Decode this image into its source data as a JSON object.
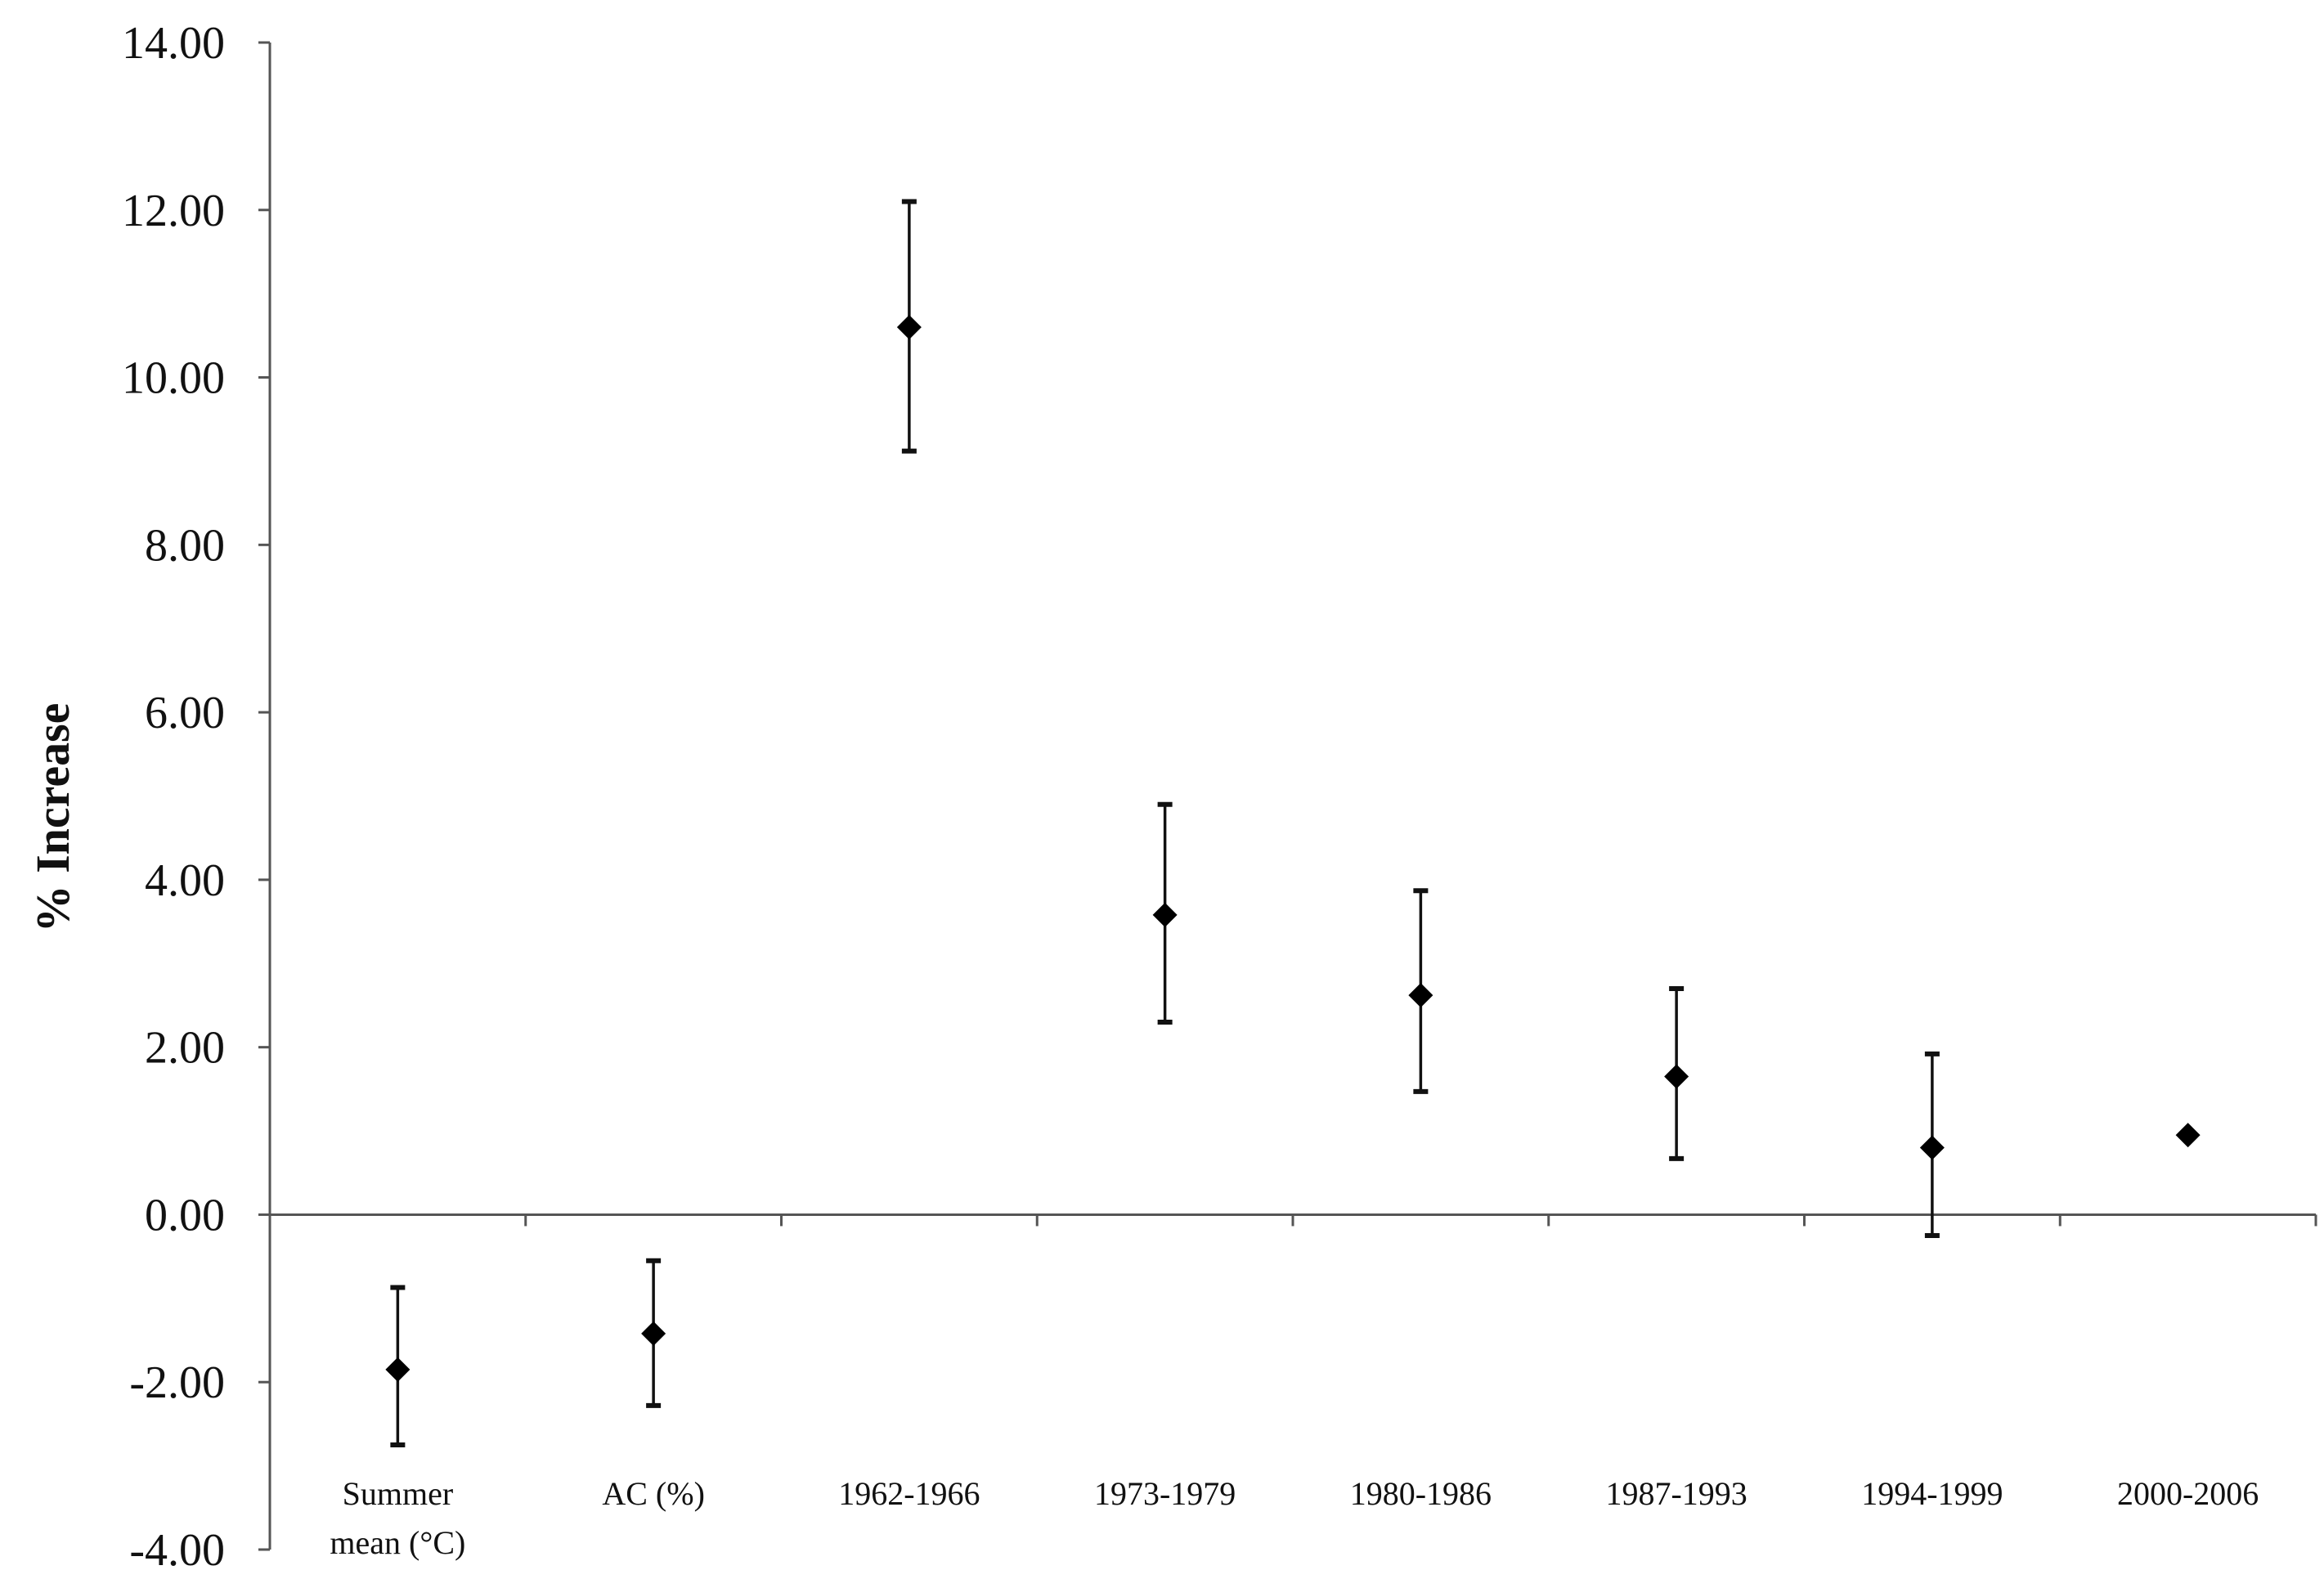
{
  "chart_data": {
    "type": "scatter",
    "title": "",
    "ylabel": "% Increase",
    "xlabel": "",
    "ylim": [
      -4,
      14
    ],
    "yticks": [
      14,
      12,
      10,
      8,
      6,
      4,
      2,
      0,
      -2,
      -4
    ],
    "ytick_labels": [
      "14.00",
      "12.00",
      "10.00",
      "8.00",
      "6.00",
      "4.00",
      "2.00",
      "0.00",
      "-2.00",
      "-4.00"
    ],
    "categories": [
      [
        "Summer",
        "mean (°C)"
      ],
      [
        "AC (%)"
      ],
      [
        "1962-1966"
      ],
      [
        "1973-1979"
      ],
      [
        "1980-1986"
      ],
      [
        "1987-1993"
      ],
      [
        "1994-1999"
      ],
      [
        "2000-2006"
      ]
    ],
    "series": [
      {
        "values": [
          -1.85,
          -1.42,
          10.6,
          3.58,
          2.62,
          1.65,
          0.8,
          0.95
        ],
        "error_high": [
          -0.87,
          -0.55,
          12.1,
          4.9,
          3.87,
          2.7,
          1.92,
          null
        ],
        "error_low": [
          -2.75,
          -2.28,
          9.12,
          2.3,
          1.47,
          0.67,
          -0.25,
          null
        ]
      }
    ],
    "grid": false,
    "legend": "none",
    "colors": {
      "marker": "#000000",
      "axis": "#555555",
      "text": "#111111"
    }
  }
}
